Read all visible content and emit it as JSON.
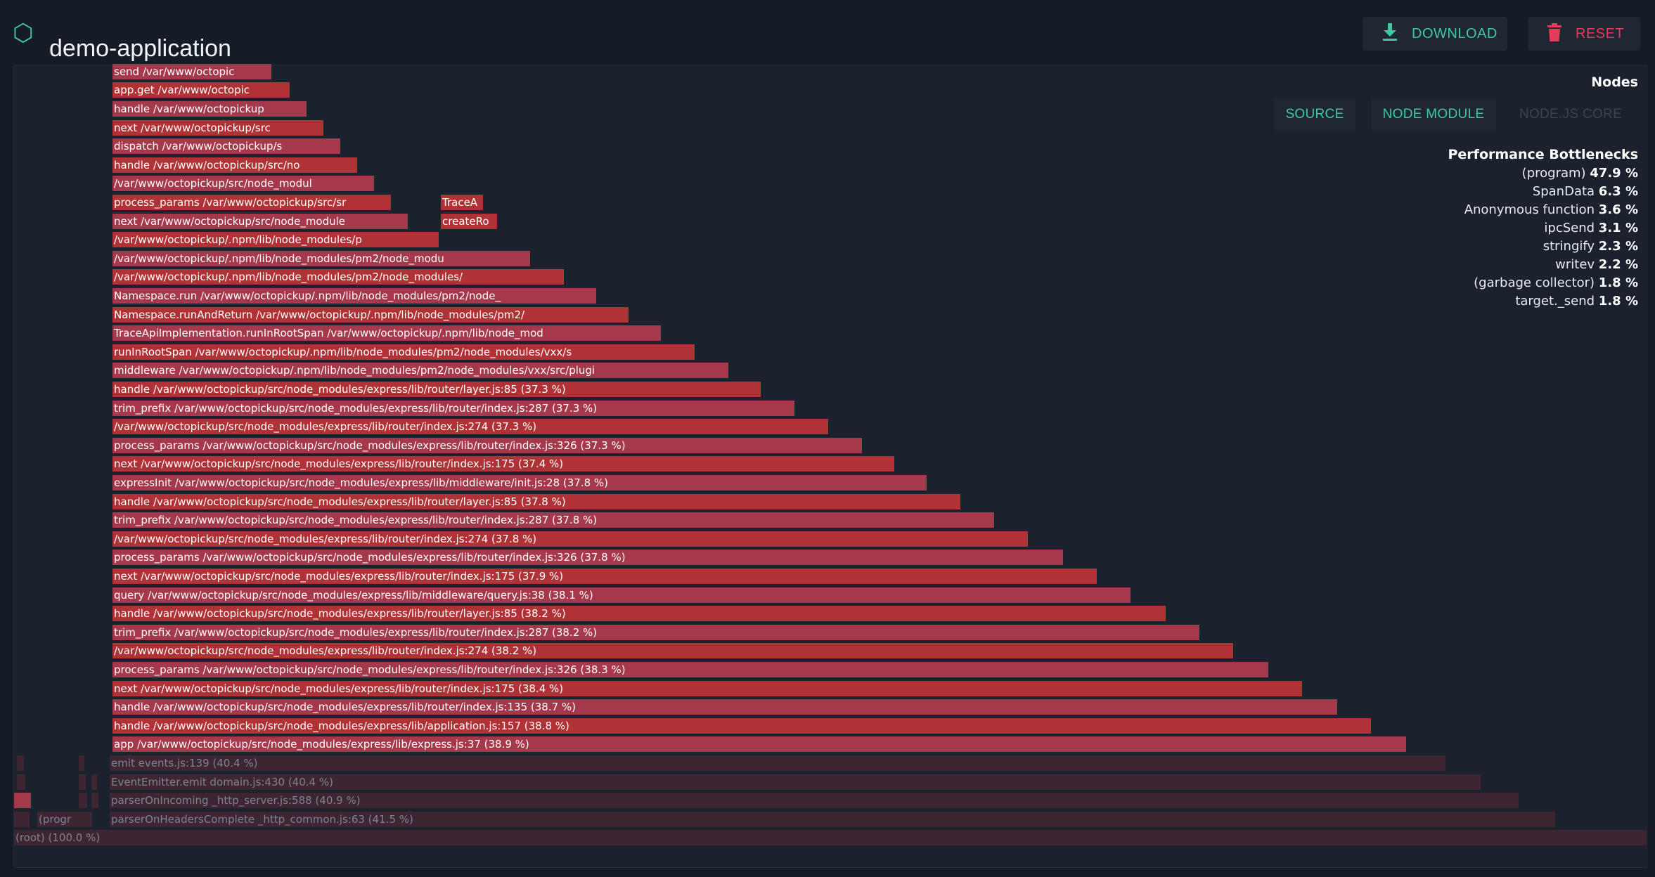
{
  "app": {
    "title": "demo-application",
    "icon": "hexagon-icon"
  },
  "header": {
    "download_label": "DOWNLOAD",
    "reset_label": "RESET"
  },
  "nodes": {
    "title": "Nodes",
    "filters": [
      {
        "label": "SOURCE",
        "active": true
      },
      {
        "label": "NODE MODULE",
        "active": true
      },
      {
        "label": "NODE.JS CORE",
        "active": false
      }
    ]
  },
  "bottlenecks": {
    "title": "Performance Bottlenecks",
    "items": [
      {
        "name": "(program)",
        "value": "47.9 %"
      },
      {
        "name": "SpanData",
        "value": "6.3 %"
      },
      {
        "name": "Anonymous function",
        "value": "3.6 %"
      },
      {
        "name": "ipcSend",
        "value": "3.1 %"
      },
      {
        "name": "stringify",
        "value": "2.3 %"
      },
      {
        "name": "writev",
        "value": "2.2 %"
      },
      {
        "name": "(garbage collector)",
        "value": "1.8 %"
      },
      {
        "name": "target._send",
        "value": "1.8 %"
      }
    ]
  },
  "colors": {
    "bright_red": "#b13236",
    "rose": "#a5384b",
    "dim": "#3d2632",
    "accent": "#3fc9a3",
    "danger": "#e23c5a"
  },
  "flame": {
    "frames": [
      {
        "label": "(root) (100.0 %)",
        "fraction": 1.0,
        "dim": true
      },
      {
        "label": "parserOnHeadersComplete _http_common.js:63 (41.5 %)",
        "fraction": 0.415,
        "dim": true
      },
      {
        "label": "parserOnIncoming _http_server.js:588 (40.9 %)",
        "fraction": 0.409,
        "dim": true
      },
      {
        "label": "EventEmitter.emit domain.js:430 (40.4 %)",
        "fraction": 0.404,
        "dim": true
      },
      {
        "label": "emit events.js:139 (40.4 %)",
        "fraction": 0.404,
        "dim": true
      },
      {
        "label": "app /var/www/octopickup/src/node_modules/express/lib/express.js:37 (38.9 %)",
        "fraction": 0.389
      },
      {
        "label": "handle /var/www/octopickup/src/node_modules/express/lib/application.js:157 (38.8 %)",
        "fraction": 0.388
      },
      {
        "label": "handle /var/www/octopickup/src/node_modules/express/lib/router/index.js:135 (38.7 %)",
        "fraction": 0.387
      },
      {
        "label": "next /var/www/octopickup/src/node_modules/express/lib/router/index.js:175 (38.4 %)",
        "fraction": 0.384
      },
      {
        "label": "process_params /var/www/octopickup/src/node_modules/express/lib/router/index.js:326 (38.3 %)",
        "fraction": 0.383
      },
      {
        "label": "/var/www/octopickup/src/node_modules/express/lib/router/index.js:274 (38.2 %)",
        "fraction": 0.382
      },
      {
        "label": "trim_prefix /var/www/octopickup/src/node_modules/express/lib/router/index.js:287 (38.2 %)",
        "fraction": 0.382
      },
      {
        "label": "handle /var/www/octopickup/src/node_modules/express/lib/router/layer.js:85 (38.2 %)",
        "fraction": 0.382
      },
      {
        "label": "query /var/www/octopickup/src/node_modules/express/lib/middleware/query.js:38 (38.1 %)",
        "fraction": 0.381
      },
      {
        "label": "next /var/www/octopickup/src/node_modules/express/lib/router/index.js:175 (37.9 %)",
        "fraction": 0.379
      },
      {
        "label": "process_params /var/www/octopickup/src/node_modules/express/lib/router/index.js:326 (37.8 %)",
        "fraction": 0.378
      },
      {
        "label": "/var/www/octopickup/src/node_modules/express/lib/router/index.js:274 (37.8 %)",
        "fraction": 0.378
      },
      {
        "label": "trim_prefix /var/www/octopickup/src/node_modules/express/lib/router/index.js:287 (37.8 %)",
        "fraction": 0.378
      },
      {
        "label": "handle /var/www/octopickup/src/node_modules/express/lib/router/layer.js:85 (37.8 %)",
        "fraction": 0.378
      },
      {
        "label": "expressInit /var/www/octopickup/src/node_modules/express/lib/middleware/init.js:28 (37.8 %)",
        "fraction": 0.378
      },
      {
        "label": "next /var/www/octopickup/src/node_modules/express/lib/router/index.js:175 (37.4 %)",
        "fraction": 0.374
      },
      {
        "label": "process_params /var/www/octopickup/src/node_modules/express/lib/router/index.js:326 (37.3 %)",
        "fraction": 0.373
      },
      {
        "label": "/var/www/octopickup/src/node_modules/express/lib/router/index.js:274 (37.3 %)",
        "fraction": 0.373
      },
      {
        "label": "trim_prefix /var/www/octopickup/src/node_modules/express/lib/router/index.js:287 (37.3 %)",
        "fraction": 0.373
      },
      {
        "label": "handle /var/www/octopickup/src/node_modules/express/lib/router/layer.js:85 (37.3 %)",
        "fraction": 0.373
      },
      {
        "label": "middleware /var/www/octopickup/.npm/lib/node_modules/pm2/node_modules/vxx/src/plugi",
        "fraction": 0.37
      },
      {
        "label": "runInRootSpan /var/www/octopickup/.npm/lib/node_modules/pm2/node_modules/vxx/s",
        "fraction": 0.37
      },
      {
        "label": "TraceApiImplementation.runInRootSpan /var/www/octopickup/.npm/lib/node_mod",
        "fraction": 0.37
      },
      {
        "label": "Namespace.runAndReturn /var/www/octopickup/.npm/lib/node_modules/pm2/",
        "fraction": 0.37
      },
      {
        "label": "Namespace.run /var/www/octopickup/.npm/lib/node_modules/pm2/node_",
        "fraction": 0.37
      },
      {
        "label": "/var/www/octopickup/.npm/lib/node_modules/pm2/node_modules/",
        "fraction": 0.37
      },
      {
        "label": "/var/www/octopickup/.npm/lib/node_modules/pm2/node_modu",
        "fraction": 0.37
      },
      {
        "label": "/var/www/octopickup/.npm/lib/node_modules/p",
        "fraction": 0.37
      },
      {
        "label": "next /var/www/octopickup/src/node_module",
        "fraction": 0.37
      },
      {
        "label": "process_params /var/www/octopickup/src/sr",
        "fraction": 0.37
      },
      {
        "label": "/var/www/octopickup/src/node_modul",
        "fraction": 0.37
      },
      {
        "label": "handle /var/www/octopickup/src/no",
        "fraction": 0.37
      },
      {
        "label": "dispatch /var/www/octopickup/s",
        "fraction": 0.37
      },
      {
        "label": "next /var/www/octopickup/src",
        "fraction": 0.37
      },
      {
        "label": "handle /var/www/octopickup",
        "fraction": 0.37
      },
      {
        "label": "app.get /var/www/octopic",
        "fraction": 0.37
      },
      {
        "label": "send /var/www/octopic",
        "fraction": 0.37
      }
    ],
    "side_frames": [
      {
        "label": "(progr"
      },
      {
        "label": "TraceA"
      },
      {
        "label": "createRo"
      }
    ]
  }
}
